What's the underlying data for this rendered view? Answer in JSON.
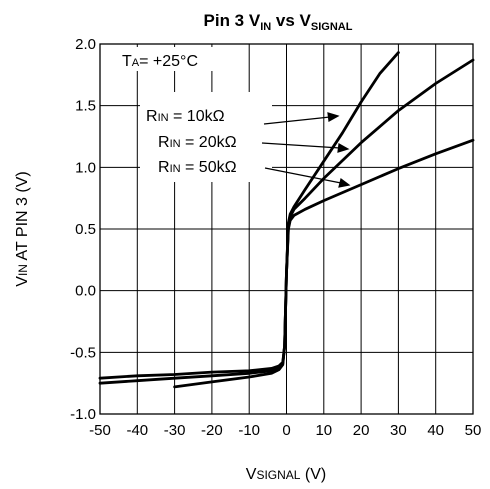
{
  "chart_data": {
    "type": "line",
    "title": {
      "prefix": "Pin 3 V",
      "sub1": "IN",
      "mid": " vs V",
      "sub2": "SIGNAL"
    },
    "xlabel": {
      "prefix": "V",
      "small": "SIGNAL",
      "suffix": " (V)"
    },
    "ylabel": {
      "prefix": "V",
      "small": "IN",
      "suffix": " AT PIN 3 (V)"
    },
    "xlim": [
      -50,
      50
    ],
    "ylim": [
      -1.0,
      2.0
    ],
    "xticks": [
      -50,
      -40,
      -30,
      -20,
      -10,
      0,
      10,
      20,
      30,
      40,
      50
    ],
    "xtick_labels": [
      "-50",
      "-40",
      "-30",
      "-20",
      "-10",
      "0",
      "10",
      "20",
      "30",
      "40",
      "50"
    ],
    "yticks": [
      -1.0,
      -0.5,
      0.0,
      0.5,
      1.0,
      1.5,
      2.0
    ],
    "ytick_labels": [
      "-1.0",
      "-0.5",
      "0.0",
      "0.5",
      "1.0",
      "1.5",
      "2.0"
    ],
    "grid": true,
    "condition": {
      "prefix": "T",
      "sub": "A",
      "suffix": "= +25°C"
    },
    "series": [
      {
        "name": {
          "prefix": "R",
          "sub": "IN",
          "suffix": " = 10kΩ"
        },
        "x": [
          -30,
          -20,
          -10,
          -4,
          -2,
          -1,
          -0.5,
          0,
          0.5,
          1,
          2,
          5,
          10,
          15,
          20,
          25,
          30
        ],
        "y": [
          -0.78,
          -0.74,
          -0.7,
          -0.67,
          -0.64,
          -0.6,
          -0.45,
          0.15,
          0.55,
          0.62,
          0.68,
          0.82,
          1.05,
          1.28,
          1.53,
          1.76,
          1.93
        ]
      },
      {
        "name": {
          "prefix": "R",
          "sub": "IN",
          "suffix": " = 20kΩ"
        },
        "x": [
          -50,
          -40,
          -30,
          -20,
          -10,
          -4,
          -2,
          -1,
          -0.5,
          0,
          0.5,
          1,
          2,
          5,
          10,
          20,
          30,
          40,
          50
        ],
        "y": [
          -0.75,
          -0.73,
          -0.71,
          -0.69,
          -0.67,
          -0.65,
          -0.63,
          -0.59,
          -0.45,
          0.15,
          0.53,
          0.6,
          0.66,
          0.75,
          0.91,
          1.2,
          1.46,
          1.68,
          1.87
        ]
      },
      {
        "name": {
          "prefix": "R",
          "sub": "IN",
          "suffix": " = 50kΩ"
        },
        "x": [
          -50,
          -40,
          -30,
          -20,
          -10,
          -4,
          -2,
          -1,
          -0.5,
          0,
          0.5,
          1,
          2,
          5,
          10,
          20,
          30,
          40,
          50
        ],
        "y": [
          -0.71,
          -0.69,
          -0.68,
          -0.66,
          -0.65,
          -0.63,
          -0.61,
          -0.58,
          -0.45,
          0.15,
          0.5,
          0.57,
          0.61,
          0.66,
          0.73,
          0.86,
          0.99,
          1.11,
          1.22
        ]
      }
    ],
    "line_color": "#000000",
    "grid_color": "#000000"
  }
}
